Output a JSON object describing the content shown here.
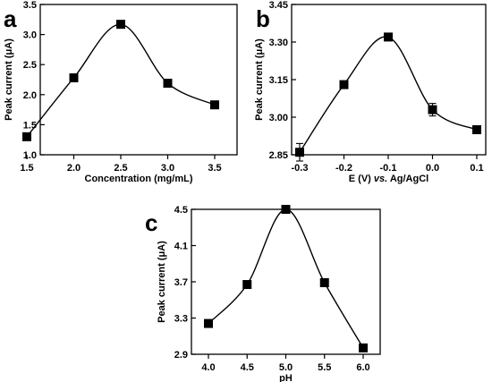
{
  "chart_data": [
    {
      "panel": "a",
      "type": "line",
      "xlabel": "Concentration (mg/mL)",
      "ylabel": "Peak current (μA)",
      "xlim": [
        1.5,
        3.5
      ],
      "ylim": [
        1.0,
        3.5
      ],
      "xticks": [
        "1.5",
        "2.0",
        "2.5",
        "3.0",
        "3.5"
      ],
      "yticks": [
        "1.0",
        "1.5",
        "2.0",
        "2.5",
        "3.0",
        "3.5"
      ],
      "x": [
        1.5,
        2.0,
        2.5,
        3.0,
        3.5
      ],
      "y": [
        1.3,
        2.28,
        3.17,
        2.19,
        1.83
      ],
      "error": [
        0,
        0,
        0,
        0,
        0
      ],
      "grid": false
    },
    {
      "panel": "b",
      "type": "line",
      "xlabel": "E (V) vs. Ag/AgCl",
      "xlabel_parts": [
        "E (V) ",
        "vs.",
        " Ag/AgCl"
      ],
      "ylabel": "Peak current (μA)",
      "xlim": [
        -0.3,
        0.1
      ],
      "ylim": [
        2.85,
        3.45
      ],
      "xticks": [
        "-0.3",
        "-0.2",
        "-0.1",
        "0.0",
        "0.1"
      ],
      "yticks": [
        "2.85",
        "3.00",
        "3.15",
        "3.30",
        "3.45"
      ],
      "x": [
        -0.3,
        -0.2,
        -0.1,
        0.0,
        0.1
      ],
      "y": [
        2.86,
        3.13,
        3.32,
        3.03,
        2.95
      ],
      "error": [
        0.035,
        0.0,
        0.012,
        0.025,
        0.0
      ],
      "grid": false
    },
    {
      "panel": "c",
      "type": "line",
      "xlabel": "pH",
      "ylabel": "Peak current (μA)",
      "xlim": [
        4.0,
        6.0
      ],
      "ylim": [
        2.9,
        4.5
      ],
      "xticks": [
        "4.0",
        "4.5",
        "5.0",
        "5.5",
        "6.0"
      ],
      "yticks": [
        "2.9",
        "3.3",
        "3.7",
        "4.1",
        "4.5"
      ],
      "x": [
        4.0,
        4.5,
        5.0,
        5.5,
        6.0
      ],
      "y": [
        3.24,
        3.67,
        4.5,
        3.69,
        2.97
      ],
      "error": [
        0,
        0,
        0,
        0,
        0
      ],
      "grid": false
    }
  ]
}
